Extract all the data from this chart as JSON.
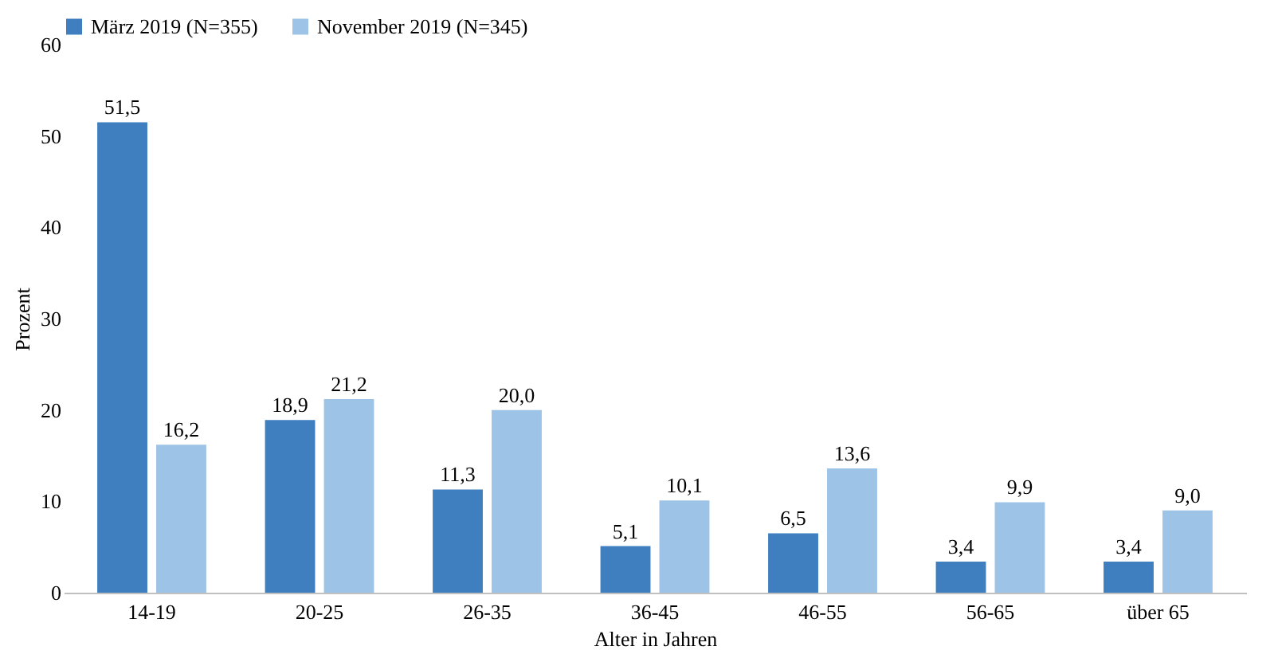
{
  "chart_data": {
    "type": "bar",
    "xlabel": "Alter in Jahren",
    "ylabel": "Prozent",
    "categories": [
      "14-19",
      "20-25",
      "26-35",
      "36-45",
      "46-55",
      "56-65",
      "über 65"
    ],
    "series": [
      {
        "name": "März 2019 (N=355)",
        "color": "#3f7fc0",
        "values": [
          51.5,
          18.9,
          11.3,
          5.1,
          6.5,
          3.4,
          3.4
        ],
        "value_labels": [
          "51,5",
          "18,9",
          "11,3",
          "5,1",
          "6,5",
          "3,4",
          "3,4"
        ]
      },
      {
        "name": "November 2019 (N=345)",
        "color": "#9dc3e6",
        "values": [
          16.2,
          21.2,
          20.0,
          10.1,
          13.6,
          9.9,
          9.0
        ],
        "value_labels": [
          "16,2",
          "21,2",
          "20,0",
          "10,1",
          "13,6",
          "9,9",
          "9,0"
        ]
      }
    ],
    "ylim": [
      0,
      60
    ],
    "yticks": [
      0,
      10,
      20,
      30,
      40,
      50,
      60
    ],
    "grid": false,
    "legend": "top"
  }
}
